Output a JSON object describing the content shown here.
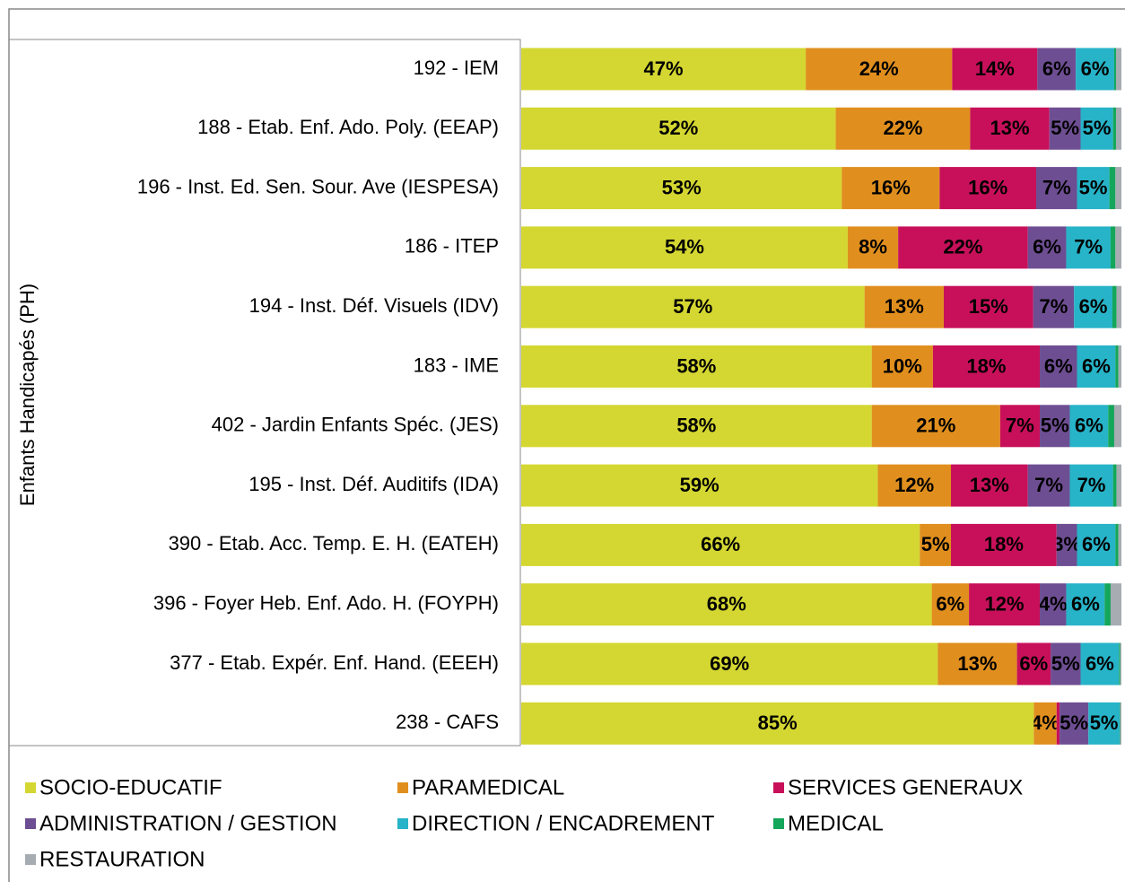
{
  "chart_data": {
    "type": "stacked_barh",
    "ylabel": "Enfants Handicapés (PH)",
    "xlim": [
      0,
      100
    ],
    "legend": "bottom",
    "categories": [
      "192 - IEM",
      "188 - Etab. Enf. Ado. Poly. (EEAP)",
      "196 - Inst. Ed. Sen. Sour. Ave (IESPESA)",
      "186 - ITEP",
      "194 - Inst. Déf. Visuels (IDV)",
      "183 - IME",
      "402 - Jardin  Enfants  Spéc. (JES)",
      "195 - Inst. Déf. Auditifs (IDA)",
      "390 - Etab. Acc. Temp. E. H. (EATEH)",
      "396 - Foyer  Heb. Enf. Ado. H. (FOYPH)",
      "377 - Etab. Expér. Enf. Hand. (EEEH)",
      "238 - CAFS"
    ],
    "series": [
      {
        "name": "SOCIO-EDUCATIF",
        "color": "#d4d731",
        "values": [
          47.4,
          52.4,
          53.4,
          54.4,
          57.2,
          58.4,
          58.4,
          59.4,
          66.4,
          68.4,
          69.4,
          85.4
        ],
        "value_labels": [
          "47%",
          "52%",
          "53%",
          "54%",
          "57%",
          "58%",
          "58%",
          "59%",
          "66%",
          "68%",
          "69%",
          "85%"
        ]
      },
      {
        "name": "PARAMEDICAL",
        "color": "#e08f1e",
        "values": [
          24.4,
          22.4,
          16.3,
          8.4,
          13.2,
          10.2,
          21.4,
          12.2,
          5.2,
          6.2,
          13.2,
          3.8
        ],
        "value_labels": [
          "24%",
          "22%",
          "16%",
          "8%",
          "13%",
          "10%",
          "21%",
          "12%",
          "5%",
          "6%",
          "13%",
          "4%"
        ]
      },
      {
        "name": "SERVICES GENERAUX",
        "color": "#c8105a",
        "values": [
          14.2,
          13.2,
          16.1,
          21.6,
          14.9,
          17.8,
          6.6,
          12.8,
          17.6,
          11.8,
          5.6,
          0.5
        ],
        "value_labels": [
          "14%",
          "13%",
          "16%",
          "22%",
          "15%",
          "18%",
          "7%",
          "13%",
          "18%",
          "12%",
          "6%",
          null
        ]
      },
      {
        "name": "ADMINISTRATION / GESTION",
        "color": "#6e4e92",
        "values": [
          6.4,
          5.2,
          6.8,
          6.4,
          6.8,
          6.2,
          5.0,
          7.0,
          3.4,
          4.4,
          5.0,
          4.8
        ],
        "value_labels": [
          "6%",
          "5%",
          "7%",
          "6%",
          "7%",
          "6%",
          "5%",
          "7%",
          "3%",
          "4%",
          "5%",
          "5%"
        ]
      },
      {
        "name": "DIRECTION / ENCADREMENT",
        "color": "#27b3c8",
        "values": [
          6.4,
          5.4,
          5.4,
          7.4,
          6.4,
          6.4,
          6.4,
          7.2,
          6.4,
          6.4,
          6.4,
          5.2
        ],
        "value_labels": [
          "6%",
          "5%",
          "5%",
          "7%",
          "6%",
          "6%",
          "6%",
          "7%",
          "6%",
          "6%",
          "6%",
          "5%"
        ]
      },
      {
        "name": "MEDICAL",
        "color": "#14a65a",
        "values": [
          0.3,
          0.5,
          1.0,
          0.8,
          0.7,
          0.5,
          1.0,
          0.6,
          0.5,
          1.0,
          0.2,
          0.1
        ]
      },
      {
        "name": "RESTAURATION",
        "color": "#a6acb2",
        "values": [
          0.9,
          0.9,
          1.0,
          1.0,
          0.8,
          0.5,
          1.2,
          0.8,
          0.5,
          1.8,
          0.2,
          0.2
        ]
      }
    ]
  }
}
